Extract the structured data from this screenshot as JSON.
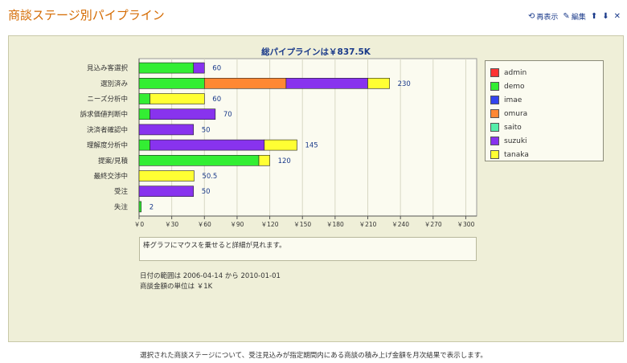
{
  "page": {
    "title": "商談ステージ別パイプライン",
    "footer": "選択された商談ステージについて、受注見込みが指定期間内にある商談の積み上げ金額を月次結果で表示します。"
  },
  "toolbar": {
    "refresh_label": "再表示",
    "edit_label": "編集"
  },
  "hint": "棒グラフにマウスを乗せると詳細が見れます。",
  "notes": {
    "date_range": "日付の範囲は 2006-04-14 から 2010-01-01",
    "unit": "商談金額の単位は ￥1K"
  },
  "colors": {
    "admin": "#ff3333",
    "demo": "#33ee33",
    "imae": "#3344ee",
    "omura": "#ff8833",
    "saito": "#55eeaa",
    "suzuki": "#8833ee",
    "tanaka": "#ffff33"
  },
  "chart_data": {
    "type": "bar",
    "orientation": "horizontal",
    "stacked": true,
    "title": "総パイプラインは￥837.5K",
    "categories": [
      "見込み客選択",
      "選別済み",
      "ニーズ分析中",
      "訴求価値判断中",
      "決済者確認中",
      "理解度分析中",
      "提案/見積",
      "最終交渉中",
      "受注",
      "失注"
    ],
    "series": [
      {
        "name": "admin",
        "values": [
          0,
          0,
          0,
          0,
          0,
          0,
          0,
          0,
          0,
          0
        ]
      },
      {
        "name": "demo",
        "values": [
          50,
          60,
          10,
          10,
          0,
          10,
          110,
          0,
          0,
          2
        ]
      },
      {
        "name": "imae",
        "values": [
          0,
          0,
          0,
          0,
          0,
          0,
          0,
          0,
          0,
          0
        ]
      },
      {
        "name": "omura",
        "values": [
          0,
          75,
          0,
          0,
          0,
          0,
          0,
          0,
          0,
          0
        ]
      },
      {
        "name": "saito",
        "values": [
          0,
          0,
          0,
          0,
          0,
          0,
          0,
          0,
          0,
          0
        ]
      },
      {
        "name": "suzuki",
        "values": [
          10,
          75,
          0,
          60,
          50,
          105,
          0,
          0,
          50,
          0
        ]
      },
      {
        "name": "tanaka",
        "values": [
          0,
          20,
          50,
          0,
          0,
          30,
          10,
          50.5,
          0,
          0
        ]
      }
    ],
    "totals": [
      "60",
      "230",
      "60",
      "70",
      "50",
      "145",
      "120",
      "50.5",
      "50",
      "2"
    ],
    "xlim": [
      0,
      310
    ],
    "xticks": [
      0,
      30,
      60,
      90,
      120,
      150,
      180,
      210,
      240,
      270,
      300
    ],
    "xtick_labels": [
      "￥0",
      "￥30",
      "￥60",
      "￥90",
      "￥120",
      "￥150",
      "￥180",
      "￥210",
      "￥240",
      "￥270",
      "￥300"
    ],
    "grid": true,
    "legend_position": "right"
  }
}
